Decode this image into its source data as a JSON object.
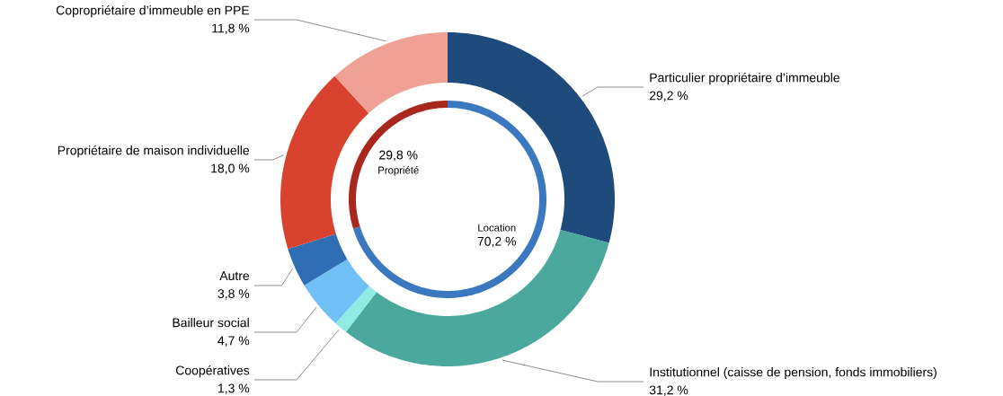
{
  "chart_data": [
    {
      "type": "donut",
      "categories": [
        "Particulier propriétaire d’immeuble",
        "Institutionnel (caisse de pension, fonds immobiliers)",
        "Coopératives",
        "Bailleur social",
        "Autre",
        "Propriétaire de maison individuelle",
        "Copropriétaire d’immeuble en PPE"
      ],
      "values": [
        29.2,
        31.2,
        1.3,
        4.7,
        3.8,
        18.0,
        11.8
      ],
      "colors": [
        "#1f4b7c",
        "#4aa89c",
        "#90ece2",
        "#70c0f6",
        "#2f6db4",
        "#da4230",
        "#f0a196"
      ],
      "value_labels": [
        "29,2 %",
        "31,2 %",
        "1,3 %",
        "4,7 %",
        "3,8 %",
        "18,0 %",
        "11,8 %"
      ]
    },
    {
      "type": "donut",
      "categories": [
        "Location",
        "Propriété"
      ],
      "values": [
        70.2,
        29.8
      ],
      "colors": [
        "#3a78c0",
        "#a8281e"
      ],
      "value_labels": [
        "70,2 %",
        "29,8 %"
      ]
    }
  ]
}
